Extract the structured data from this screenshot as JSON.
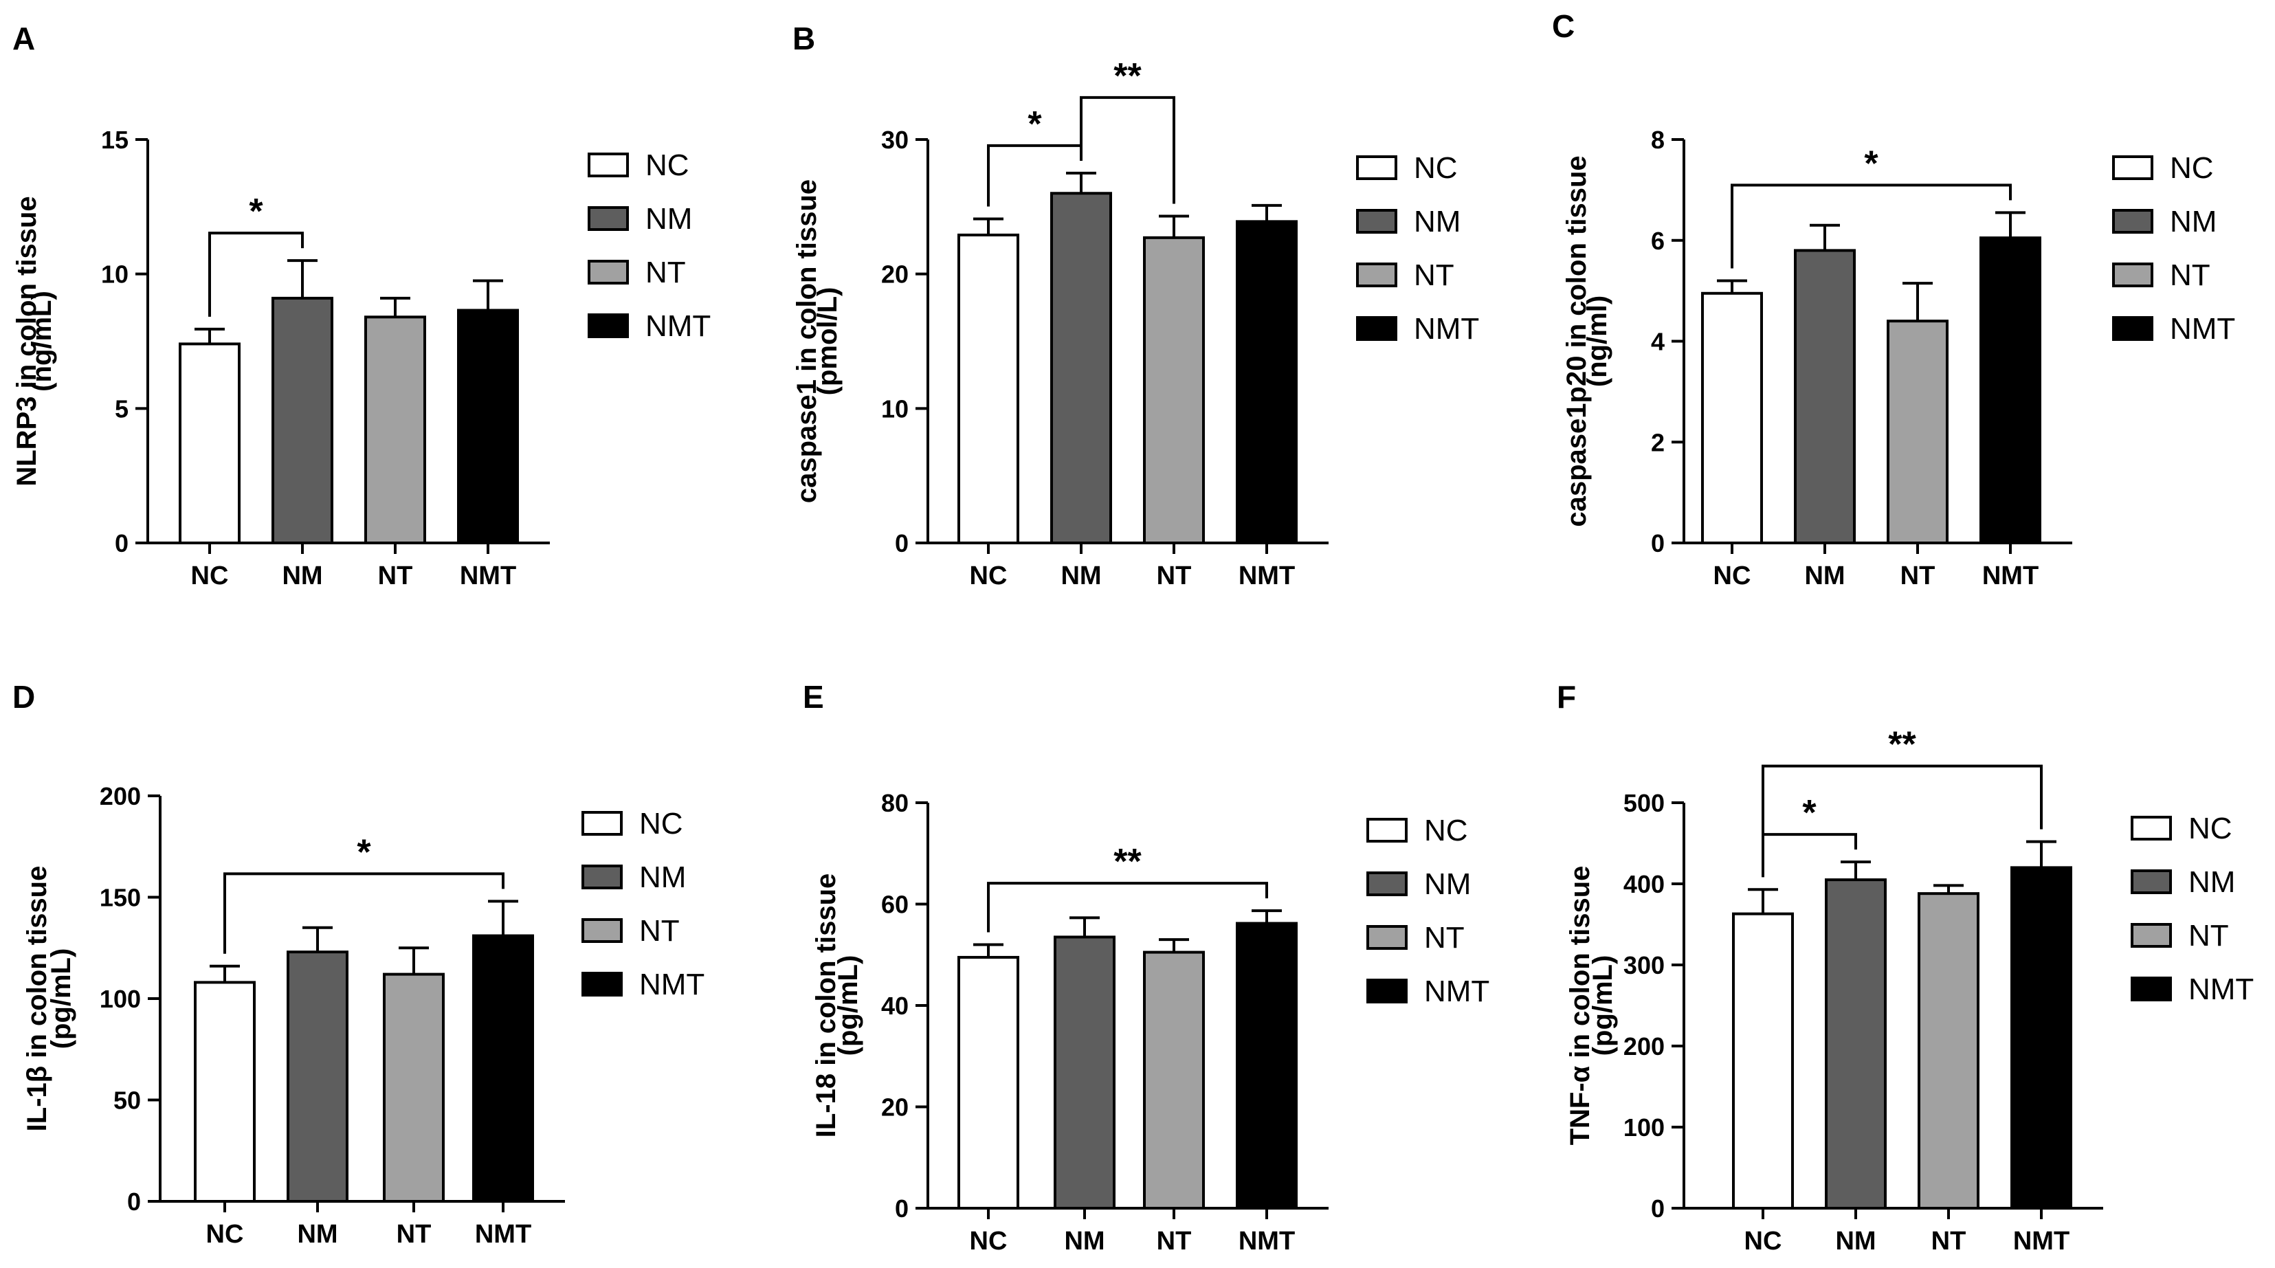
{
  "figure": {
    "colors": {
      "NC": "#ffffff",
      "NM": "#5e5e5e",
      "NT": "#a1a1a1",
      "NMT": "#000000",
      "stroke": "#000000"
    }
  },
  "chart_data": [
    {
      "type": "bar",
      "panel": "A",
      "categories": [
        "NC",
        "NM",
        "NT",
        "NMT"
      ],
      "values": [
        7.4,
        9.1,
        8.4,
        8.65
      ],
      "errors": [
        0.55,
        1.4,
        0.7,
        1.1
      ],
      "ylabel_line1": "NLRP3 in colon tissue",
      "ylabel_line2": "(ng/mL)",
      "ylim": [
        0,
        15
      ],
      "yticks": [
        0,
        5,
        10,
        15
      ],
      "legend": [
        "NC",
        "NM",
        "NT",
        "NMT"
      ],
      "significance": [
        {
          "from": 0,
          "to": 1,
          "label": "*"
        }
      ]
    },
    {
      "type": "bar",
      "panel": "B",
      "categories": [
        "NC",
        "NM",
        "NT",
        "NMT"
      ],
      "values": [
        22.9,
        26.0,
        22.7,
        23.9
      ],
      "errors": [
        1.2,
        1.5,
        1.6,
        1.2
      ],
      "ylabel_line1": "caspase1 in colon tissue",
      "ylabel_line2": "(pmol/L)",
      "ylim": [
        0,
        30
      ],
      "yticks": [
        0,
        10,
        20,
        30
      ],
      "legend": [
        "NC",
        "NM",
        "NT",
        "NMT"
      ],
      "significance": [
        {
          "from": 0,
          "to": 1,
          "label": "*"
        },
        {
          "from": 1,
          "to": 2,
          "label": "**"
        }
      ]
    },
    {
      "type": "bar",
      "panel": "C",
      "categories": [
        "NC",
        "NM",
        "NT",
        "NMT"
      ],
      "values": [
        4.95,
        5.8,
        4.4,
        6.05
      ],
      "errors": [
        0.25,
        0.5,
        0.75,
        0.5
      ],
      "ylabel_line1": "caspase1p20 in colon tissue",
      "ylabel_line2": "(ng/ml)",
      "ylim": [
        0,
        8
      ],
      "yticks": [
        0,
        2,
        4,
        6,
        8
      ],
      "legend": [
        "NC",
        "NM",
        "NT",
        "NMT"
      ],
      "significance": [
        {
          "from": 0,
          "to": 3,
          "label": "*"
        }
      ]
    },
    {
      "type": "bar",
      "panel": "D",
      "categories": [
        "NC",
        "NM",
        "NT",
        "NMT"
      ],
      "values": [
        108,
        123,
        112,
        131
      ],
      "errors": [
        8,
        12,
        13,
        17
      ],
      "ylabel_line1": "IL-1β in colon tissue",
      "ylabel_line2": "(pg/mL)",
      "ylim": [
        0,
        200
      ],
      "yticks": [
        0,
        50,
        100,
        150,
        200
      ],
      "legend": [
        "NC",
        "NM",
        "NT",
        "NMT"
      ],
      "significance": [
        {
          "from": 0,
          "to": 3,
          "label": "*"
        }
      ]
    },
    {
      "type": "bar",
      "panel": "E",
      "categories": [
        "NC",
        "NM",
        "NT",
        "NMT"
      ],
      "values": [
        49.5,
        53.5,
        50.5,
        56.2
      ],
      "errors": [
        2.5,
        3.8,
        2.5,
        2.5
      ],
      "ylabel_line1": "IL-18 in colon tissue",
      "ylabel_line2": "(pg/mL)",
      "ylim": [
        0,
        80
      ],
      "yticks": [
        0,
        20,
        40,
        60,
        80
      ],
      "legend": [
        "NC",
        "NM",
        "NT",
        "NMT"
      ],
      "significance": [
        {
          "from": 0,
          "to": 3,
          "label": "**"
        }
      ]
    },
    {
      "type": "bar",
      "panel": "F",
      "categories": [
        "NC",
        "NM",
        "NT",
        "NMT"
      ],
      "values": [
        363,
        405,
        388,
        420
      ],
      "errors": [
        30,
        22,
        10,
        32
      ],
      "ylabel_line1": "TNF-α in colon tissue",
      "ylabel_line2": "(pg/mL)",
      "ylim": [
        0,
        500
      ],
      "yticks": [
        0,
        100,
        200,
        300,
        400,
        500
      ],
      "legend": [
        "NC",
        "NM",
        "NT",
        "NMT"
      ],
      "significance": [
        {
          "from": 0,
          "to": 1,
          "label": "*"
        },
        {
          "from": 0,
          "to": 3,
          "label": "**"
        }
      ]
    }
  ]
}
